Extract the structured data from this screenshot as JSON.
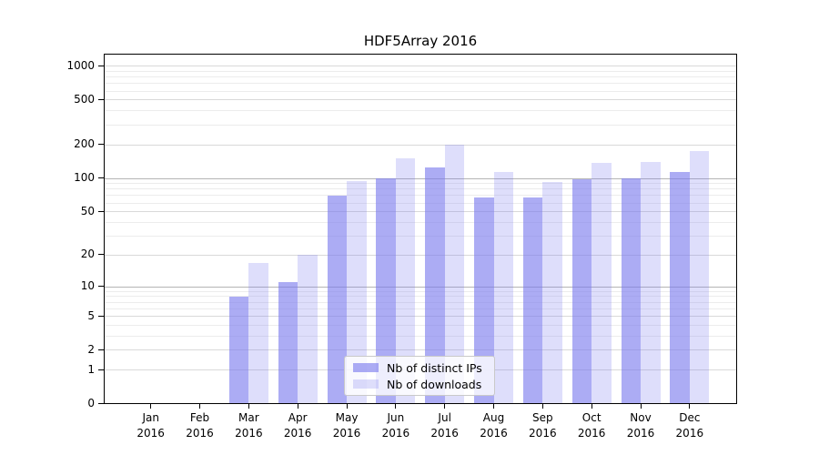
{
  "chart_data": {
    "type": "bar",
    "title": "HDF5Array 2016",
    "categories": [
      "Jan 2016",
      "Feb 2016",
      "Mar 2016",
      "Apr 2016",
      "May 2016",
      "Jun 2016",
      "Jul 2016",
      "Aug 2016",
      "Sep 2016",
      "Oct 2016",
      "Nov 2016",
      "Dec 2016"
    ],
    "series": [
      {
        "key": "distinct-ips",
        "name": "Nb of distinct IPs",
        "color": "rgba(124,124,238,0.63)",
        "values": [
          0,
          0,
          8,
          11,
          70,
          100,
          125,
          67,
          67,
          98,
          100,
          114
        ]
      },
      {
        "key": "downloads",
        "name": "Nb of downloads",
        "color": "rgba(124,124,238,0.25)",
        "values": [
          0,
          0,
          17,
          20,
          95,
          150,
          200,
          115,
          92,
          138,
          140,
          176
        ]
      }
    ],
    "xlabel": "",
    "ylabel": "",
    "yscale": "log1p",
    "y_ticks": [
      0,
      1,
      2,
      5,
      10,
      20,
      50,
      100,
      200,
      500,
      1000
    ],
    "y_minor_gridlines": [
      3,
      4,
      6,
      7,
      8,
      9,
      30,
      40,
      60,
      70,
      80,
      90,
      300,
      400,
      600,
      700,
      800,
      900
    ],
    "ylim": [
      0,
      1284
    ],
    "grid": true,
    "legend_position": "inside-bottom-center",
    "colors": {
      "bar_base": "#7c7cee",
      "decade_gridline": "#b4b4b4",
      "major_gridline": "#d9d9d9",
      "minor_gridline": "#ececec",
      "axis": "#000000",
      "legend_border": "#c9c9c9",
      "legend_background": "rgba(255,255,255,0.8)"
    }
  }
}
